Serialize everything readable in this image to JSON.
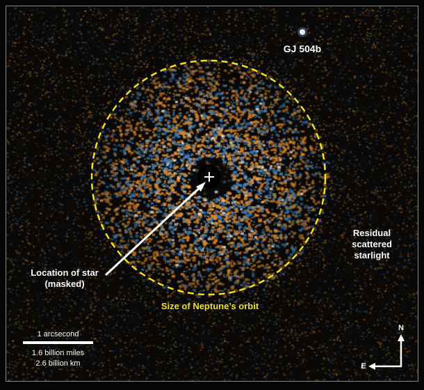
{
  "labels": {
    "planet": "GJ 504b",
    "residual": [
      "Residual",
      "scattered",
      "starlight"
    ],
    "star": [
      "Location of star",
      "(masked)"
    ],
    "orbit": "Size of Neptune’s orbit"
  },
  "scale_bar": {
    "angle": "1 arcsecond",
    "miles": "1.6 billion miles",
    "km": "2.6 billion km"
  },
  "compass": {
    "north": "N",
    "east": "E"
  },
  "colors": {
    "orbit": "#f2e21c",
    "speckle_orange": "#e08a2a",
    "speckle_blue": "#3a7ec0",
    "text": "#ffffff"
  }
}
